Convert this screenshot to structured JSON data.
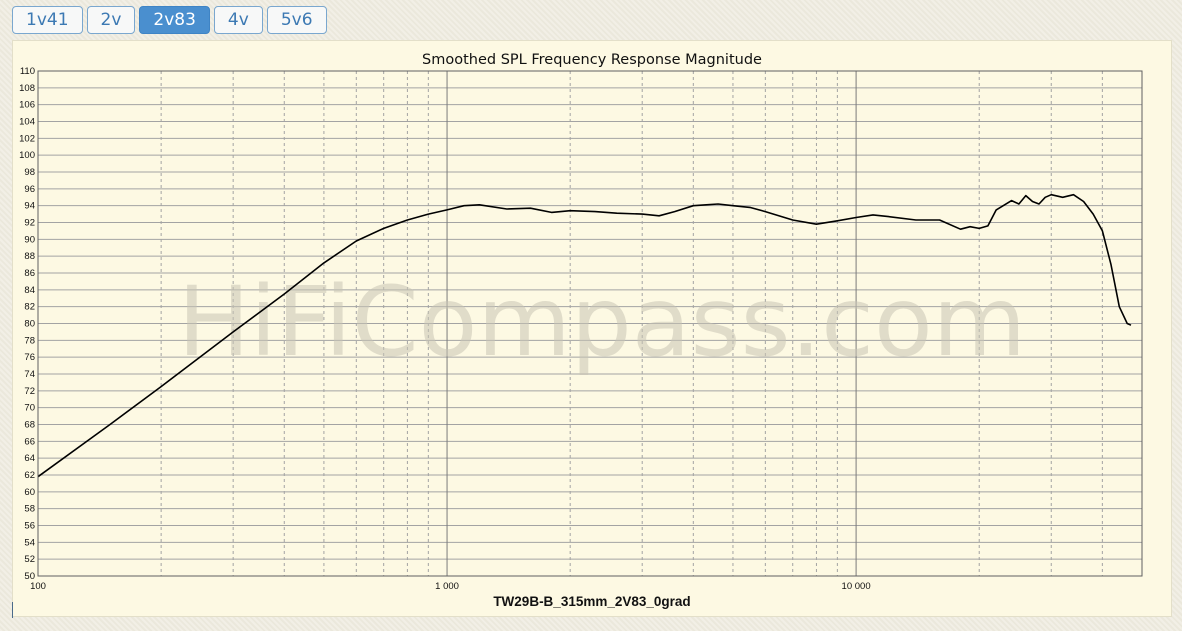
{
  "tabs": [
    {
      "label": "1v41",
      "active": false
    },
    {
      "label": "2v",
      "active": false
    },
    {
      "label": "2v83",
      "active": true
    },
    {
      "label": "4v",
      "active": false
    },
    {
      "label": "5v6",
      "active": false
    }
  ],
  "watermark": "HiFiCompass.com",
  "chart_data": {
    "type": "line",
    "title": "Smoothed SPL Frequency Response Magnitude",
    "xlabel": "TW29B-B_315mm_2V83_0grad",
    "ylabel": "",
    "x_scale": "log",
    "xlim": [
      100,
      50000
    ],
    "ylim": [
      50,
      110
    ],
    "x_tick_labels": [
      {
        "value": 100,
        "label": "100"
      },
      {
        "value": 1000,
        "label": "1 000"
      },
      {
        "value": 10000,
        "label": "10 000"
      }
    ],
    "y_ticks": [
      50,
      52,
      54,
      56,
      58,
      60,
      62,
      64,
      66,
      68,
      70,
      72,
      74,
      76,
      78,
      80,
      82,
      84,
      86,
      88,
      90,
      92,
      94,
      96,
      98,
      100,
      102,
      104,
      106,
      108,
      110
    ],
    "grid": true,
    "colors": {
      "line": "#000000",
      "grid": "#a3a3a3",
      "plot_bg": "#fdf9e3",
      "accent": "#4a8fcf"
    },
    "series": [
      {
        "x": [
          100,
          150,
          200,
          300,
          400,
          500,
          600,
          700,
          800,
          900,
          1000,
          1100,
          1200,
          1400,
          1600,
          1800,
          2000,
          2300,
          2600,
          3000,
          3300,
          3600,
          4000,
          4300,
          4600,
          5000,
          5500,
          6000,
          7000,
          8000,
          9000,
          10000,
          11000,
          12000,
          14000,
          16000,
          18000,
          19000,
          20000,
          21000,
          22000,
          24000,
          25000,
          26000,
          27000,
          28000,
          29000,
          30000,
          32000,
          34000,
          36000,
          38000,
          40000,
          42000,
          44000,
          46000,
          47000
        ],
        "values": [
          61.8,
          68,
          72.5,
          79,
          83.5,
          87.2,
          89.8,
          91.3,
          92.3,
          93,
          93.5,
          94,
          94.1,
          93.6,
          93.7,
          93.2,
          93.4,
          93.3,
          93.1,
          93,
          92.8,
          93.3,
          94,
          94.1,
          94.2,
          94,
          93.8,
          93.3,
          92.3,
          91.8,
          92.2,
          92.6,
          92.9,
          92.7,
          92.3,
          92.3,
          91.2,
          91.5,
          91.3,
          91.6,
          93.5,
          94.6,
          94.2,
          95.2,
          94.5,
          94.2,
          95,
          95.3,
          95,
          95.3,
          94.5,
          93,
          91,
          87,
          82,
          80,
          79.8
        ]
      }
    ]
  }
}
